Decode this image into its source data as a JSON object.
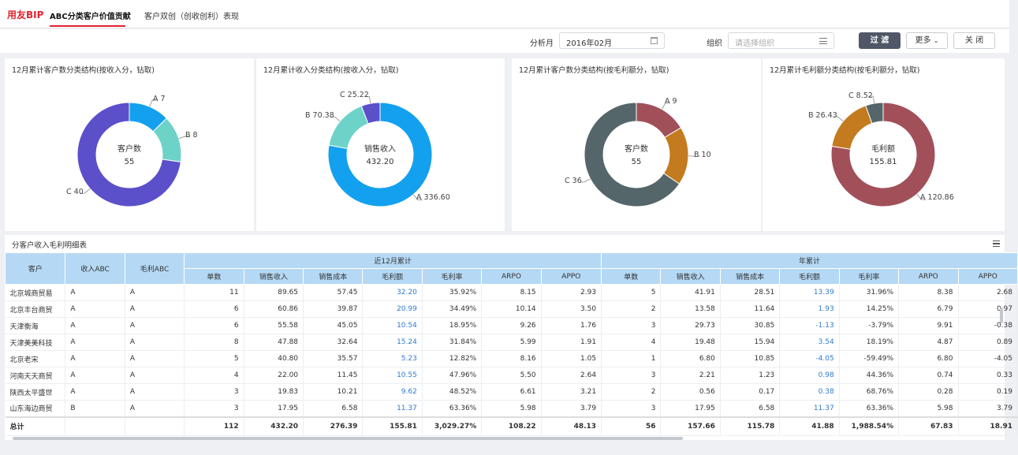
{
  "app": {
    "logo": "用友BIP"
  },
  "tabs": [
    {
      "label": "ABC分类客户价值贡献"
    },
    {
      "label": "客户双创（创收创利）表现"
    }
  ],
  "filters": {
    "month_label": "分析月",
    "month_value": "2016年02月",
    "org_label": "组织",
    "org_placeholder": "请选择组织",
    "filter_btn": "过 滤",
    "more_btn": "更多",
    "close_btn": "关 闭"
  },
  "charts": [
    {
      "title": "12月累计客户数分类结构(按收入分，钻取)",
      "center_label": "客户数",
      "center_value": "55",
      "labels": [
        "A 7",
        "B 8",
        "C 40"
      ]
    },
    {
      "title": "12月累计收入分类结构(按收入分，钻取)",
      "center_label": "销售收入",
      "center_value": "432.20",
      "labels": [
        "C 25.22",
        "B 70.38",
        "A 336.60"
      ]
    },
    {
      "title": "12月累计客户数分类结构(按毛利额分，钻取)",
      "center_label": "客户数",
      "center_value": "55",
      "labels": [
        "A 9",
        "B 10",
        "C 36"
      ]
    },
    {
      "title": "12月累计毛利额分类结构(按毛利额分，钻取)",
      "center_label": "毛利额",
      "center_value": "155.81",
      "labels": [
        "C 8.52",
        "B 26.43",
        "A 120.86"
      ]
    }
  ],
  "chart_data": [
    {
      "type": "pie",
      "categories": [
        "A",
        "B",
        "C"
      ],
      "values": [
        7,
        8,
        40
      ],
      "colors": [
        "#13a0ef",
        "#6dd3c9",
        "#5b4fca"
      ]
    },
    {
      "type": "pie",
      "categories": [
        "A",
        "B",
        "C"
      ],
      "values": [
        336.6,
        70.38,
        25.22
      ],
      "colors": [
        "#13a0ef",
        "#6dd3c9",
        "#5b4fca"
      ]
    },
    {
      "type": "pie",
      "categories": [
        "A",
        "B",
        "C"
      ],
      "values": [
        9,
        10,
        36
      ],
      "colors": [
        "#a1505a",
        "#c47a1e",
        "#546669"
      ]
    },
    {
      "type": "pie",
      "categories": [
        "A",
        "B",
        "C"
      ],
      "values": [
        120.86,
        26.43,
        8.52
      ],
      "colors": [
        "#a1505a",
        "#c47a1e",
        "#546669"
      ]
    }
  ],
  "table": {
    "title": "分客户收入毛利明细表",
    "group_headers": [
      "近12月累计",
      "年累计"
    ],
    "fixed_headers": [
      "客户",
      "收入ABC",
      "毛利ABC"
    ],
    "sub_headers": [
      "单数",
      "销售收入",
      "销售成本",
      "毛利额",
      "毛利率",
      "ARPO",
      "APPO"
    ],
    "rows": [
      [
        "北京城商贸易",
        "A",
        "A",
        "11",
        "89.65",
        "57.45",
        "32.20",
        "35.92%",
        "8.15",
        "2.93",
        "5",
        "41.91",
        "28.51",
        "13.39",
        "31.96%",
        "8.38",
        "2.68"
      ],
      [
        "北京丰台商贸",
        "A",
        "A",
        "6",
        "60.86",
        "39.87",
        "20.99",
        "34.49%",
        "10.14",
        "3.50",
        "2",
        "13.58",
        "11.64",
        "1.93",
        "14.25%",
        "6.79",
        "0.97"
      ],
      [
        "天津衡海",
        "A",
        "A",
        "6",
        "55.58",
        "45.05",
        "10.54",
        "18.95%",
        "9.26",
        "1.76",
        "3",
        "29.73",
        "30.85",
        "-1.13",
        "-3.79%",
        "9.91",
        "-0.38"
      ],
      [
        "天津美美科技",
        "A",
        "A",
        "8",
        "47.88",
        "32.64",
        "15.24",
        "31.84%",
        "5.99",
        "1.91",
        "4",
        "19.48",
        "15.94",
        "3.54",
        "18.19%",
        "4.87",
        "0.89"
      ],
      [
        "北京老宋",
        "A",
        "A",
        "5",
        "40.80",
        "35.57",
        "5.23",
        "12.82%",
        "8.16",
        "1.05",
        "1",
        "6.80",
        "10.85",
        "-4.05",
        "-59.49%",
        "6.80",
        "-4.05"
      ],
      [
        "河南天天商贸",
        "A",
        "A",
        "4",
        "22.00",
        "11.45",
        "10.55",
        "47.96%",
        "5.50",
        "2.64",
        "3",
        "2.21",
        "1.23",
        "0.98",
        "44.36%",
        "0.74",
        "0.33"
      ],
      [
        "陕西太平盛世",
        "A",
        "A",
        "3",
        "19.83",
        "10.21",
        "9.62",
        "48.52%",
        "6.61",
        "3.21",
        "2",
        "0.56",
        "0.17",
        "0.38",
        "68.76%",
        "0.28",
        "0.19"
      ],
      [
        "山东海边商贸",
        "B",
        "A",
        "3",
        "17.95",
        "6.58",
        "11.37",
        "63.36%",
        "5.98",
        "3.79",
        "3",
        "17.95",
        "6.58",
        "11.37",
        "63.36%",
        "5.98",
        "3.79"
      ]
    ],
    "total": [
      "总计",
      "",
      "",
      "112",
      "432.20",
      "276.39",
      "155.81",
      "3,029.27%",
      "108.22",
      "48.13",
      "56",
      "157.66",
      "115.78",
      "41.88",
      "1,988.54%",
      "67.83",
      "18.91"
    ]
  }
}
